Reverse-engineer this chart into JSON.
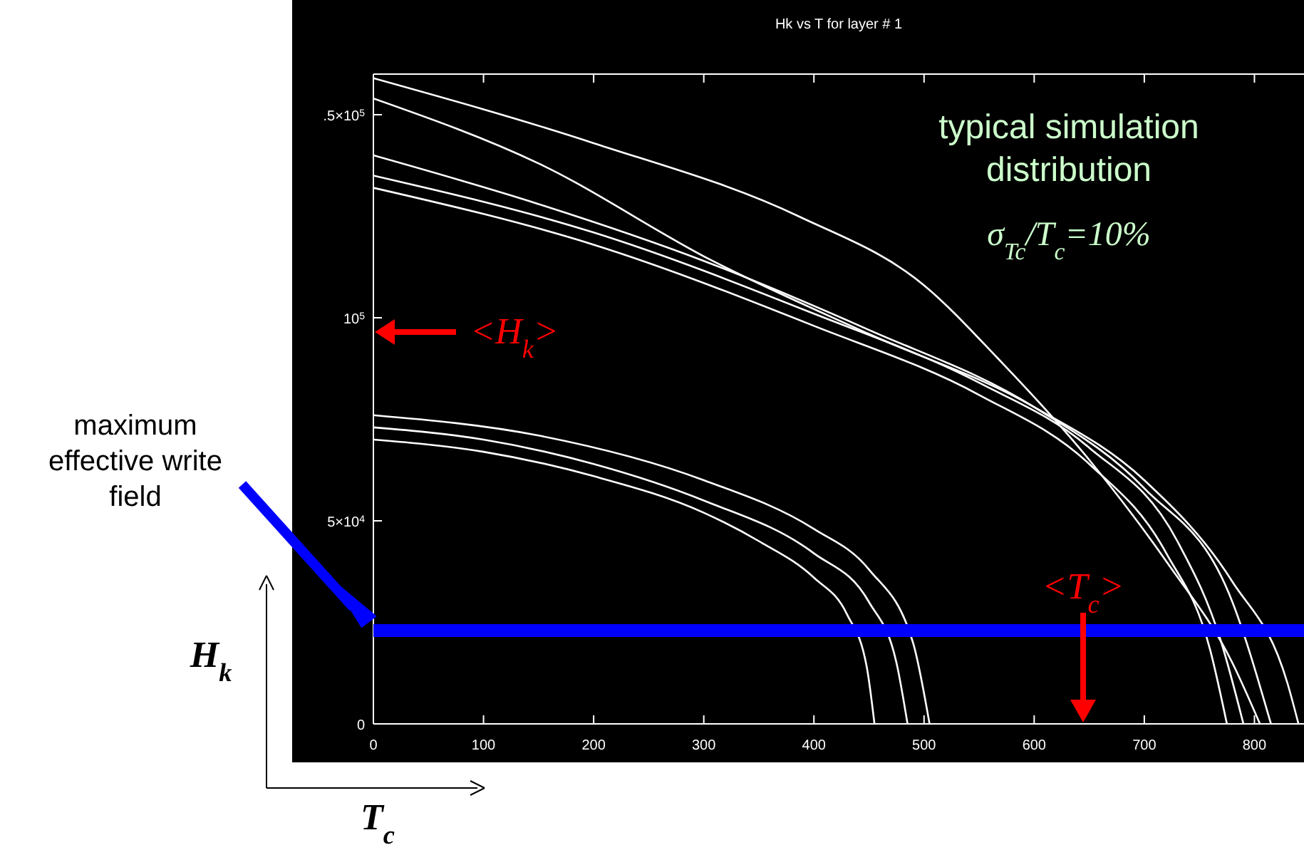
{
  "chart_data": {
    "type": "line",
    "title": "Hk vs T for layer #  1",
    "xlabel": "T$_{c}$",
    "ylabel": "H$_{k}$",
    "xlim": [
      0,
      845
    ],
    "xticks": [
      0,
      100,
      200,
      300,
      400,
      500,
      600,
      700,
      800
    ],
    "ylim": [
      0,
      160000
    ],
    "yticks": [
      0,
      {
        "value": 50000,
        "label": "5×10$^{4}$"
      },
      {
        "value": 100000,
        "label": "10$^{5}$"
      },
      {
        "value": 150000,
        "label": ".5×10$^{5}$"
      }
    ],
    "grid": false,
    "marker": "none",
    "line_style": "solid",
    "series": [
      {
        "color": "#ffffff",
        "x": [
          0,
          200,
          386,
          500,
          567,
          650,
          720,
          780,
          805
        ],
        "values": [
          159000,
          143000,
          125000,
          108000,
          90000,
          65000,
          40000,
          15000,
          0
        ]
      },
      {
        "color": "#ffffff",
        "x": [
          0,
          150,
          308,
          450,
          600,
          700,
          780,
          830,
          840
        ],
        "values": [
          154000,
          138000,
          114000,
          96000,
          78000,
          60000,
          35000,
          10000,
          0
        ]
      },
      {
        "color": "#ffffff",
        "x": [
          0,
          150,
          300,
          450,
          600,
          700,
          780,
          815
        ],
        "values": [
          140000,
          128000,
          114000,
          97000,
          78000,
          58000,
          30000,
          0
        ]
      },
      {
        "color": "#ffffff",
        "x": [
          0,
          200,
          400,
          550,
          650,
          730,
          770,
          790
        ],
        "values": [
          135000,
          121000,
          101000,
          84000,
          68000,
          45000,
          20000,
          0
        ]
      },
      {
        "color": "#ffffff",
        "x": [
          0,
          200,
          400,
          550,
          650,
          720,
          760,
          775
        ],
        "values": [
          132000,
          118000,
          98000,
          81000,
          64000,
          42000,
          18000,
          0
        ]
      },
      {
        "color": "#ffffff",
        "x": [
          0,
          100,
          200,
          300,
          350,
          400,
          430,
          448,
          455
        ],
        "values": [
          70000,
          67000,
          61000,
          52000,
          45000,
          36000,
          27000,
          14000,
          0
        ]
      },
      {
        "color": "#ffffff",
        "x": [
          0,
          100,
          200,
          300,
          400,
          450,
          475,
          485
        ],
        "values": [
          73000,
          70000,
          64000,
          55000,
          42000,
          30000,
          15000,
          0
        ]
      },
      {
        "color": "#ffffff",
        "x": [
          0,
          150,
          300,
          400,
          450,
          490,
          505
        ],
        "values": [
          76000,
          71000,
          60000,
          48000,
          38000,
          20000,
          0
        ]
      }
    ],
    "ref_lines": [
      {
        "axis": "y",
        "value": 23000,
        "color": "#0000ff"
      }
    ],
    "annotations": [
      "typical simulation distribution",
      "σ$_{Tc}$/T$_{c}$=10%",
      "<H$_{k}$>",
      "<T$_{c}$>",
      "maximum effective write field"
    ]
  }
}
